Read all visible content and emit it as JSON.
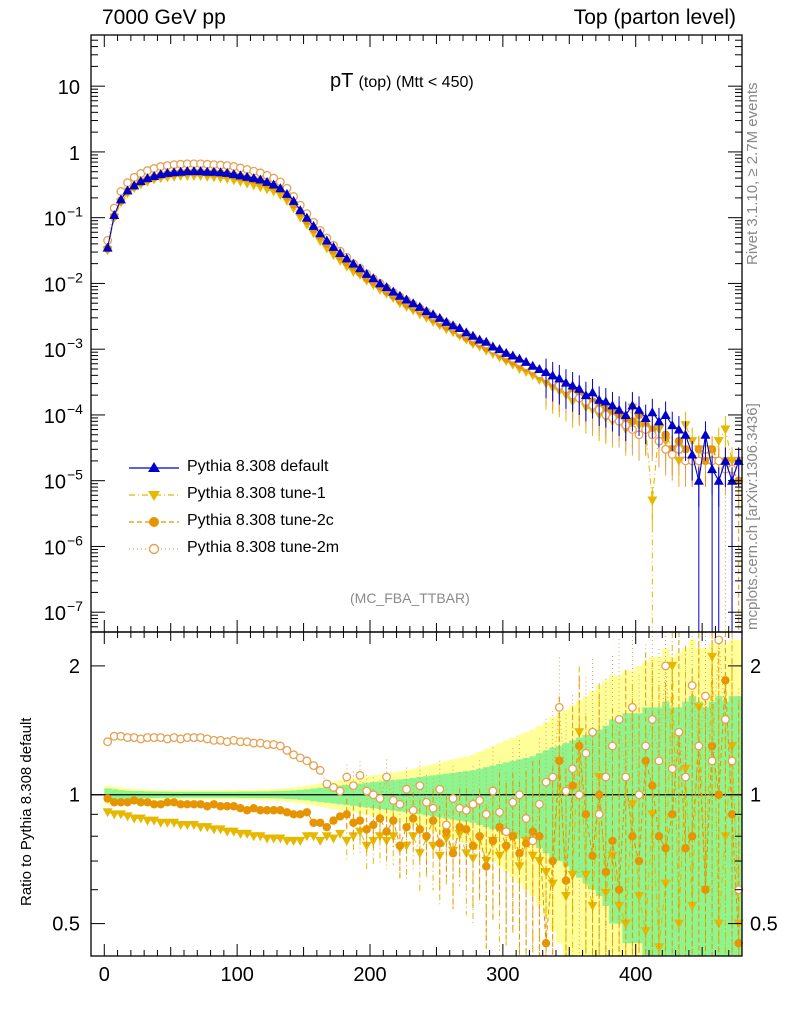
{
  "header": {
    "left": "7000 GeV pp",
    "right": "Top (parton level)"
  },
  "plot_title": {
    "main": "pT",
    "sub": "(top) (Mtt < 450)"
  },
  "analysis_name": "(MC_FBA_TTBAR)",
  "side_text": {
    "rivet": "Rivet 3.1.10, ≥ 2.7M events",
    "source": "mcplots.cern.ch [arXiv:1306.3436]"
  },
  "ratio_ylabel": "Ratio to Pythia 8.308 default",
  "colors": {
    "default": "#0000cc",
    "tune1": "#e6b800",
    "tune2c": "#e69500",
    "tune2m": "#e6a050",
    "band_green": "#8ef58e",
    "band_yellow": "#ffff99"
  },
  "legend": [
    {
      "label": "Pythia 8.308 default",
      "marker": "triangle-up",
      "color": "#0000cc",
      "line": "solid"
    },
    {
      "label": "Pythia 8.308 tune-1",
      "marker": "triangle-down",
      "color": "#e6b800",
      "line": "dashdot"
    },
    {
      "label": "Pythia 8.308 tune-2c",
      "marker": "circle-filled",
      "color": "#e69500",
      "line": "dashed"
    },
    {
      "label": "Pythia 8.308 tune-2m",
      "marker": "circle-open",
      "color": "#e6a050",
      "line": "dotted"
    }
  ],
  "chart_data": [
    {
      "type": "scatter",
      "panel": "main",
      "ylog": true,
      "xlim": [
        -10,
        480
      ],
      "ylim": [
        5e-08,
        60
      ],
      "xticks": [
        0,
        100,
        200,
        300,
        400
      ],
      "yticks": [
        {
          "v": 1e-07,
          "label": "10",
          "exp": "−7"
        },
        {
          "v": 1e-06,
          "label": "10",
          "exp": "−6"
        },
        {
          "v": 1e-05,
          "label": "10",
          "exp": "−5"
        },
        {
          "v": 0.0001,
          "label": "10",
          "exp": "−4"
        },
        {
          "v": 0.001,
          "label": "10",
          "exp": "−3"
        },
        {
          "v": 0.01,
          "label": "10",
          "exp": "−2"
        },
        {
          "v": 0.1,
          "label": "10",
          "exp": "−1"
        },
        {
          "v": 1,
          "label": "1",
          "exp": ""
        },
        {
          "v": 10,
          "label": "10",
          "exp": ""
        }
      ],
      "x": [
        2.5,
        7.5,
        12.5,
        17.5,
        22.5,
        27.5,
        32.5,
        37.5,
        42.5,
        47.5,
        52.5,
        57.5,
        62.5,
        67.5,
        72.5,
        77.5,
        82.5,
        87.5,
        92.5,
        97.5,
        102.5,
        107.5,
        112.5,
        117.5,
        122.5,
        127.5,
        132.5,
        137.5,
        142.5,
        147.5,
        152.5,
        157.5,
        162.5,
        167.5,
        172.5,
        177.5,
        182.5,
        187.5,
        192.5,
        197.5,
        202.5,
        207.5,
        212.5,
        217.5,
        222.5,
        227.5,
        232.5,
        237.5,
        242.5,
        247.5,
        252.5,
        257.5,
        262.5,
        267.5,
        272.5,
        277.5,
        282.5,
        287.5,
        292.5,
        297.5,
        302.5,
        307.5,
        312.5,
        317.5,
        322.5,
        327.5,
        332.5,
        337.5,
        342.5,
        347.5,
        352.5,
        357.5,
        362.5,
        367.5,
        372.5,
        377.5,
        382.5,
        387.5,
        392.5,
        397.5,
        402.5,
        407.5,
        412.5,
        417.5,
        422.5,
        427.5,
        432.5,
        437.5,
        442.5,
        447.5,
        452.5,
        457.5,
        462.5,
        467.5,
        472.5,
        477.5
      ],
      "series": [
        {
          "name": "Pythia 8.308 default",
          "values": [
            0.035,
            0.11,
            0.19,
            0.26,
            0.31,
            0.36,
            0.4,
            0.43,
            0.46,
            0.48,
            0.49,
            0.5,
            0.51,
            0.51,
            0.51,
            0.5,
            0.5,
            0.49,
            0.48,
            0.46,
            0.44,
            0.42,
            0.4,
            0.38,
            0.35,
            0.32,
            0.28,
            0.23,
            0.18,
            0.13,
            0.1,
            0.075,
            0.058,
            0.045,
            0.036,
            0.029,
            0.024,
            0.02,
            0.017,
            0.014,
            0.012,
            0.01,
            0.0088,
            0.0075,
            0.0065,
            0.0057,
            0.005,
            0.0044,
            0.0038,
            0.0034,
            0.003,
            0.0026,
            0.0023,
            0.0021,
            0.0018,
            0.0016,
            0.0014,
            0.0013,
            0.0011,
            0.001,
            0.00088,
            0.0008,
            0.00072,
            0.00064,
            0.00056,
            0.0005,
            0.00045,
            0.0004,
            0.00036,
            0.00031,
            0.00028,
            0.00025,
            0.0002,
            0.00022,
            0.00017,
            0.00016,
            0.00014,
            0.00012,
            0.0001,
            0.00014,
            0.00012,
            9e-05,
            0.00011,
            8e-05,
            0.0001,
            7e-05,
            6e-05,
            5e-05,
            2.5e-05,
            1e-05,
            5e-05,
            1.5e-05,
            1e-05,
            2e-05,
            1e-05,
            2e-05
          ]
        },
        {
          "name": "Pythia 8.308 tune-1",
          "values": [
            0.032,
            0.1,
            0.17,
            0.235,
            0.28,
            0.32,
            0.35,
            0.38,
            0.4,
            0.41,
            0.42,
            0.43,
            0.43,
            0.43,
            0.43,
            0.42,
            0.41,
            0.4,
            0.39,
            0.37,
            0.35,
            0.33,
            0.31,
            0.29,
            0.27,
            0.25,
            0.22,
            0.18,
            0.14,
            0.1,
            0.078,
            0.058,
            0.044,
            0.034,
            0.027,
            0.022,
            0.018,
            0.015,
            0.0135,
            0.011,
            0.0095,
            0.008,
            0.007,
            0.006,
            0.005,
            0.0044,
            0.0039,
            0.0034,
            0.003,
            0.0026,
            0.0023,
            0.002,
            0.0018,
            0.0016,
            0.0014,
            0.0012,
            0.0011,
            0.00095,
            0.00085,
            0.00075,
            0.00066,
            0.00058,
            0.0005,
            0.00045,
            0.0004,
            0.00034,
            0.0003,
            0.00026,
            0.00023,
            0.0002,
            0.00016,
            0.00017,
            0.00013,
            0.00012,
            0.0001,
            9e-05,
            8e-05,
            0.0001,
            6e-05,
            0.00013,
            7e-05,
            6e-05,
            5e-06,
            6e-05,
            4e-05,
            3e-05,
            2e-05,
            7e-05,
            4e-05,
            3e-05,
            3e-05,
            2e-05,
            4e-05,
            6e-05,
            2e-05,
            2e-05
          ]
        },
        {
          "name": "Pythia 8.308 tune-2c",
          "values": [
            0.034,
            0.105,
            0.18,
            0.25,
            0.3,
            0.345,
            0.38,
            0.41,
            0.44,
            0.46,
            0.47,
            0.48,
            0.49,
            0.49,
            0.49,
            0.48,
            0.48,
            0.47,
            0.46,
            0.44,
            0.42,
            0.4,
            0.38,
            0.36,
            0.33,
            0.3,
            0.27,
            0.21,
            0.16,
            0.12,
            0.09,
            0.067,
            0.052,
            0.04,
            0.032,
            0.026,
            0.021,
            0.018,
            0.0145,
            0.012,
            0.0105,
            0.009,
            0.0075,
            0.0065,
            0.0055,
            0.0048,
            0.0043,
            0.0038,
            0.0033,
            0.0029,
            0.0025,
            0.0022,
            0.002,
            0.0017,
            0.0015,
            0.0013,
            0.0012,
            0.00105,
            0.00095,
            0.00084,
            0.00072,
            0.00065,
            0.00058,
            0.00052,
            0.00046,
            0.0004,
            0.00035,
            0.0003,
            0.00028,
            0.00025,
            0.00022,
            0.0002,
            0.00018,
            0.00016,
            0.00014,
            0.00012,
            0.00011,
            0.0001,
            9e-05,
            8e-05,
            0.0001,
            7e-05,
            6e-05,
            4e-05,
            5e-05,
            3e-05,
            4e-05,
            3e-05,
            2e-05,
            3e-05,
            2e-05,
            3e-05,
            2e-05,
            2e-05,
            1.5e-05,
            1e-05
          ]
        },
        {
          "name": "Pythia 8.308 tune-2m",
          "values": [
            0.045,
            0.14,
            0.25,
            0.34,
            0.41,
            0.47,
            0.52,
            0.56,
            0.6,
            0.62,
            0.64,
            0.65,
            0.66,
            0.66,
            0.66,
            0.65,
            0.64,
            0.63,
            0.62,
            0.6,
            0.57,
            0.54,
            0.51,
            0.48,
            0.44,
            0.4,
            0.35,
            0.28,
            0.21,
            0.155,
            0.115,
            0.085,
            0.064,
            0.049,
            0.038,
            0.031,
            0.025,
            0.02,
            0.017,
            0.014,
            0.0118,
            0.01,
            0.0085,
            0.0073,
            0.0063,
            0.0055,
            0.0048,
            0.0042,
            0.0037,
            0.0032,
            0.0028,
            0.0025,
            0.0022,
            0.0019,
            0.0017,
            0.0015,
            0.0013,
            0.0012,
            0.001,
            0.00092,
            0.00082,
            0.00073,
            0.00064,
            0.00056,
            0.0005,
            0.00042,
            0.00038,
            0.00033,
            0.00028,
            0.00025,
            0.0002,
            0.00018,
            0.00016,
            0.00014,
            0.00012,
            0.0001,
            9e-05,
            8e-05,
            7e-05,
            6e-05,
            5e-05,
            6e-05,
            5e-05,
            4e-05,
            3e-05,
            2.5e-05,
            3e-05,
            2e-05,
            2e-05,
            2e-05,
            3e-05,
            2e-05,
            2e-05,
            1.5e-05,
            1.5e-05,
            2e-05
          ]
        }
      ]
    },
    {
      "type": "scatter",
      "panel": "ratio",
      "ylog": true,
      "xlim": [
        -10,
        480
      ],
      "ylim": [
        0.42,
        2.4
      ],
      "xticks": [
        0,
        100,
        200,
        300,
        400
      ],
      "yticks": [
        0.5,
        1,
        2
      ],
      "series": [
        {
          "name": "Pythia 8.308 tune-1",
          "values": [
            0.91,
            0.9,
            0.9,
            0.89,
            0.88,
            0.88,
            0.87,
            0.87,
            0.86,
            0.86,
            0.86,
            0.85,
            0.85,
            0.85,
            0.84,
            0.84,
            0.83,
            0.83,
            0.82,
            0.82,
            0.81,
            0.81,
            0.8,
            0.8,
            0.79,
            0.79,
            0.79,
            0.78,
            0.78,
            0.78,
            0.8,
            0.8,
            0.78,
            0.8,
            0.79,
            0.81,
            0.78,
            0.8,
            0.82,
            0.76,
            0.78,
            0.8,
            0.78,
            0.8,
            0.75,
            0.76,
            0.8,
            0.73,
            0.79,
            0.76,
            0.72,
            0.79,
            0.74,
            0.81,
            0.73,
            0.71,
            0.79,
            0.7,
            0.78,
            0.72,
            0.75,
            0.8,
            0.68,
            0.78,
            0.72,
            0.7,
            0.66,
            0.62,
            1.2,
            0.58,
            0.65,
            1.4,
            0.65,
            0.55,
            1.1,
            0.59,
            0.72,
            0.55,
            0.5,
            0.95,
            0.58,
            0.48,
            0.9,
            0.44,
            0.62,
            2.0,
            0.5,
            1.15,
            0.55,
            1.6,
            0.6,
            2.1,
            0.5,
            0.8,
            1.3,
            0.5
          ]
        },
        {
          "name": "Pythia 8.308 tune-2c",
          "values": [
            0.98,
            0.96,
            0.96,
            0.96,
            0.97,
            0.96,
            0.96,
            0.95,
            0.95,
            0.96,
            0.96,
            0.95,
            0.95,
            0.95,
            0.95,
            0.94,
            0.95,
            0.94,
            0.94,
            0.94,
            0.93,
            0.92,
            0.93,
            0.92,
            0.92,
            0.92,
            0.92,
            0.91,
            0.9,
            0.9,
            0.91,
            0.86,
            0.86,
            0.84,
            0.87,
            0.89,
            0.9,
            0.86,
            0.87,
            0.83,
            0.85,
            0.88,
            0.82,
            0.87,
            0.76,
            0.84,
            0.88,
            0.83,
            0.8,
            0.87,
            0.77,
            0.82,
            0.73,
            0.84,
            0.83,
            0.76,
            0.8,
            0.68,
            0.78,
            0.84,
            0.76,
            0.8,
            0.73,
            0.77,
            0.82,
            0.8,
            0.45,
            0.7,
            1.2,
            0.63,
            1.05,
            1.3,
            0.9,
            0.72,
            1.0,
            0.66,
            0.78,
            0.6,
            1.1,
            0.8,
            0.7,
            1.2,
            1.05,
            0.8,
            0.75,
            0.9,
            1.4,
            0.75,
            0.8,
            1.3,
            0.6,
            1.3,
            1.0,
            1.85,
            0.9,
            0.45
          ]
        },
        {
          "name": "Pythia 8.308 tune-2m",
          "values": [
            1.33,
            1.37,
            1.37,
            1.36,
            1.36,
            1.35,
            1.36,
            1.36,
            1.36,
            1.35,
            1.36,
            1.35,
            1.36,
            1.36,
            1.36,
            1.35,
            1.34,
            1.34,
            1.33,
            1.34,
            1.33,
            1.33,
            1.32,
            1.32,
            1.31,
            1.31,
            1.3,
            1.27,
            1.24,
            1.22,
            1.2,
            1.17,
            1.14,
            1.06,
            1.04,
            1.02,
            1.1,
            1.05,
            1.11,
            1.02,
            1.0,
            0.98,
            1.1,
            0.97,
            0.95,
            1.03,
            0.92,
            1.05,
            0.96,
            0.93,
            1.03,
            0.85,
            0.98,
            0.93,
            0.92,
            0.95,
            0.97,
            0.9,
            1.02,
            0.91,
            0.82,
            0.96,
            1.0,
            0.88,
            0.78,
            0.95,
            1.07,
            1.1,
            1.6,
            1.02,
            1.15,
            1.0,
            1.25,
            1.4,
            0.9,
            1.1,
            1.3,
            1.5,
            1.1,
            1.6,
            1.0,
            1.3,
            1.5,
            1.2,
            2.0,
            1.15,
            1.4,
            1.1,
            1.8,
            1.3,
            1.7,
            1.2,
            2.3,
            1.5,
            1.2,
            0.6
          ]
        }
      ],
      "band_green": [
        0.035,
        0.03,
        0.025,
        0.022,
        0.02,
        0.02,
        0.018,
        0.018,
        0.017,
        0.017,
        0.016,
        0.016,
        0.016,
        0.016,
        0.016,
        0.016,
        0.016,
        0.016,
        0.016,
        0.016,
        0.017,
        0.017,
        0.017,
        0.018,
        0.018,
        0.019,
        0.02,
        0.022,
        0.024,
        0.027,
        0.03,
        0.034,
        0.038,
        0.042,
        0.046,
        0.05,
        0.054,
        0.058,
        0.062,
        0.066,
        0.07,
        0.074,
        0.078,
        0.082,
        0.086,
        0.09,
        0.095,
        0.1,
        0.105,
        0.11,
        0.115,
        0.12,
        0.125,
        0.13,
        0.135,
        0.14,
        0.15,
        0.16,
        0.17,
        0.18,
        0.19,
        0.2,
        0.21,
        0.22,
        0.23,
        0.25,
        0.27,
        0.29,
        0.3,
        0.32,
        0.34,
        0.36,
        0.38,
        0.4,
        0.42,
        0.45,
        0.5,
        0.5,
        0.55,
        0.55,
        0.55,
        0.6,
        0.6,
        0.6,
        0.65,
        0.6,
        0.6,
        0.65,
        0.7,
        0.65,
        0.6,
        0.65,
        0.7,
        0.65,
        0.7,
        0.7
      ],
      "band_yellow": [
        0.05,
        0.045,
        0.04,
        0.035,
        0.032,
        0.03,
        0.028,
        0.027,
        0.026,
        0.026,
        0.025,
        0.025,
        0.025,
        0.025,
        0.025,
        0.025,
        0.025,
        0.025,
        0.025,
        0.026,
        0.026,
        0.027,
        0.028,
        0.029,
        0.03,
        0.032,
        0.034,
        0.037,
        0.04,
        0.045,
        0.05,
        0.056,
        0.062,
        0.068,
        0.074,
        0.08,
        0.086,
        0.092,
        0.098,
        0.104,
        0.11,
        0.116,
        0.122,
        0.128,
        0.135,
        0.142,
        0.15,
        0.16,
        0.17,
        0.18,
        0.19,
        0.2,
        0.21,
        0.22,
        0.23,
        0.24,
        0.26,
        0.28,
        0.3,
        0.32,
        0.34,
        0.36,
        0.38,
        0.4,
        0.42,
        0.45,
        0.48,
        0.52,
        0.55,
        0.58,
        0.62,
        0.66,
        0.7,
        0.75,
        0.8,
        0.85,
        0.9,
        0.9,
        0.95,
        0.95,
        1.0,
        1.05,
        1.1,
        1.1,
        1.2,
        1.1,
        1.15,
        1.2,
        1.3,
        1.2,
        1.2,
        1.25,
        1.3,
        1.25,
        1.3,
        1.3
      ]
    }
  ]
}
